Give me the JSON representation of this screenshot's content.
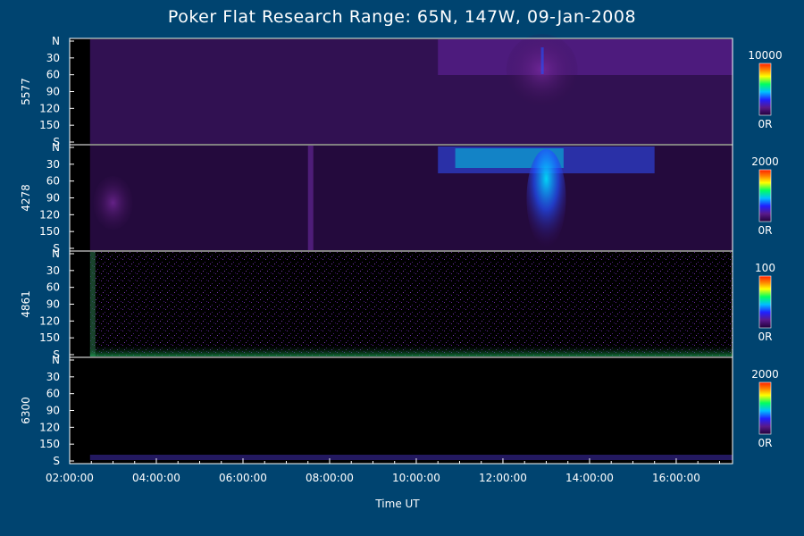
{
  "title": "Poker Flat Research Range: 65N, 147W, 09-Jan-2008",
  "colors": {
    "background": "#004470",
    "plot_bg": "#000000",
    "axis": "#ffffff",
    "emission": "#4a1a6e"
  },
  "chart_data": {
    "type": "heatmap",
    "title": "Poker Flat Research Range: 65N, 147W, 09-Jan-2008",
    "xlabel": "Time UT",
    "x_ticks": [
      "02:00:00",
      "04:00:00",
      "06:00:00",
      "08:00:00",
      "10:00:00",
      "12:00:00",
      "14:00:00",
      "16:00:00"
    ],
    "x_range_hours": [
      2.0,
      17.3
    ],
    "y_ticks": [
      "N",
      "30",
      "60",
      "90",
      "120",
      "150",
      "S"
    ],
    "panels": [
      {
        "label": "5577",
        "colorbar_max": "10000",
        "colorbar_min": "0R"
      },
      {
        "label": "4278",
        "colorbar_max": "2000",
        "colorbar_min": "0R"
      },
      {
        "label": "4861",
        "colorbar_max": "100",
        "colorbar_min": "0R"
      },
      {
        "label": "6300",
        "colorbar_max": "2000",
        "colorbar_min": "0R"
      }
    ],
    "colormap": [
      "#20003a",
      "#5a1a8a",
      "#2020ff",
      "#00c0ff",
      "#00ff60",
      "#ffff00",
      "#ff8000",
      "#ff2000"
    ]
  }
}
